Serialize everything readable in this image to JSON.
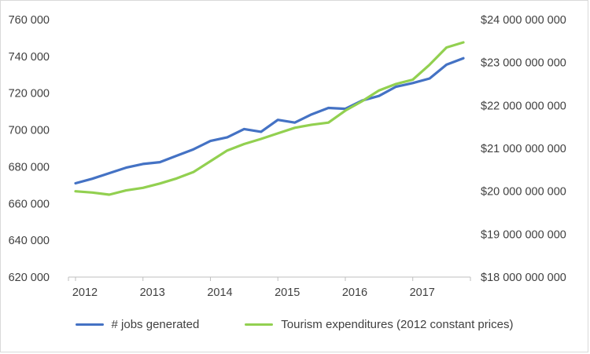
{
  "chart_data": {
    "type": "line",
    "title": "",
    "xlabel": "",
    "ylabel_left": "",
    "ylabel_right": "",
    "grid": false,
    "legend_position": "bottom",
    "x": [
      "2012 Q1",
      "2012 Q2",
      "2012 Q3",
      "2012 Q4",
      "2013 Q1",
      "2013 Q2",
      "2013 Q3",
      "2013 Q4",
      "2014 Q1",
      "2014 Q2",
      "2014 Q3",
      "2014 Q4",
      "2015 Q1",
      "2015 Q2",
      "2015 Q3",
      "2015 Q4",
      "2016 Q1",
      "2016 Q2",
      "2016 Q3",
      "2016 Q4",
      "2017 Q1",
      "2017 Q2",
      "2017 Q3",
      "2017 Q4"
    ],
    "x_tick_labels": [
      "2012",
      "2013",
      "2014",
      "2015",
      "2016",
      "2017"
    ],
    "left_axis": {
      "min": 620000,
      "max": 760000,
      "step": 20000,
      "labels": [
        "760 000",
        "740 000",
        "720 000",
        "700 000",
        "680 000",
        "660 000",
        "640 000",
        "620 000"
      ]
    },
    "right_axis": {
      "min": 18000000000,
      "max": 24000000000,
      "step": 1000000000,
      "labels": [
        "$24 000 000 000",
        "$23 000 000 000",
        "$22 000 000 000",
        "$21 000 000 000",
        "$20 000 000 000",
        "$19 000 000 000",
        "$18 000 000 000"
      ]
    },
    "series": [
      {
        "name": "# jobs generated",
        "axis": "left",
        "color": "#4472C4",
        "values": [
          671000,
          673500,
          676500,
          679500,
          681500,
          682500,
          686000,
          689500,
          694000,
          696000,
          700500,
          699000,
          705500,
          704000,
          708500,
          712000,
          711500,
          716000,
          718500,
          723500,
          725500,
          728000,
          735500,
          739000
        ]
      },
      {
        "name": "Tourism expenditures (2012 constant prices)",
        "axis": "right",
        "color": "#92D050",
        "values": [
          20000000000,
          19970000000,
          19920000000,
          20020000000,
          20080000000,
          20180000000,
          20300000000,
          20450000000,
          20700000000,
          20950000000,
          21100000000,
          21220000000,
          21350000000,
          21480000000,
          21550000000,
          21600000000,
          21880000000,
          22100000000,
          22350000000,
          22500000000,
          22600000000,
          22950000000,
          23350000000,
          23470000000
        ]
      }
    ]
  },
  "colors": {
    "axis_line": "#BFBFBF",
    "text": "#404040",
    "border": "#D9D9D9"
  }
}
